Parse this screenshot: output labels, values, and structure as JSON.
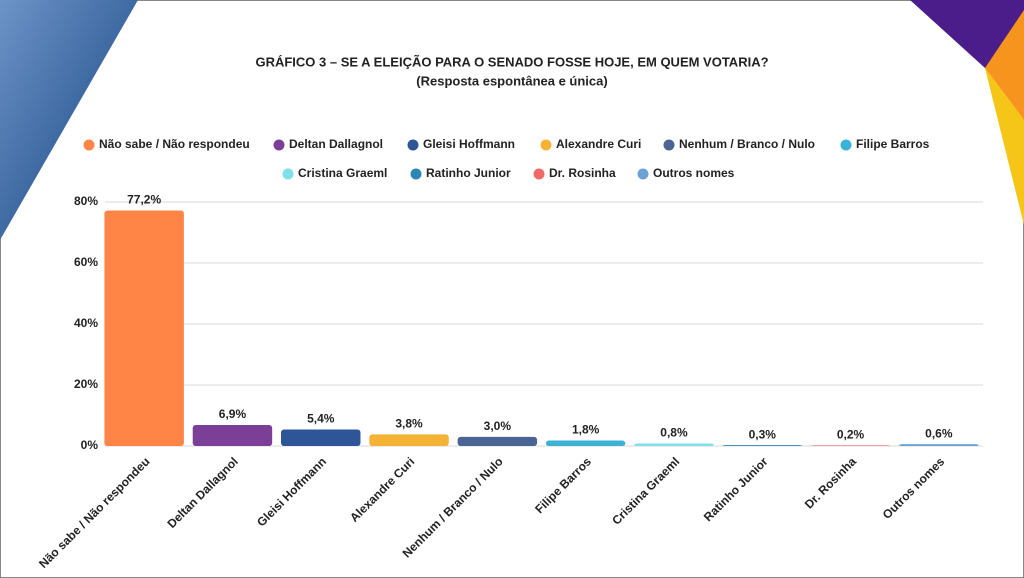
{
  "chart_data": {
    "type": "bar",
    "title": "GRÁFICO 3 – SE A ELEIÇÃO PARA O SENADO FOSSE HOJE, EM QUEM VOTARIA?",
    "subtitle": "(Resposta espontânea e única)",
    "categories": [
      "Não sabe / Não respondeu",
      "Deltan Dallagnol",
      "Gleisi Hoffmann",
      "Alexandre Curi",
      "Nenhum / Branco / Nulo",
      "Filipe Barros",
      "Cristina Graeml",
      "Ratinho Junior",
      "Dr. Rosinha",
      "Outros nomes"
    ],
    "values": [
      77.2,
      6.9,
      5.4,
      3.8,
      3.0,
      1.8,
      0.8,
      0.3,
      0.2,
      0.6
    ],
    "value_labels": [
      "77,2%",
      "6,9%",
      "5,4%",
      "3,8%",
      "3,0%",
      "1,8%",
      "0,8%",
      "0,3%",
      "0,2%",
      "0,6%"
    ],
    "colors": [
      "#ff8547",
      "#7b3f98",
      "#2e5597",
      "#f5b335",
      "#4a6593",
      "#3cb3d6",
      "#7fe0e8",
      "#2e86b4",
      "#f06a6a",
      "#6fa2d4"
    ],
    "ylim": [
      0,
      80
    ],
    "yticks": [
      {
        "value": 0,
        "label": "0%"
      },
      {
        "value": 20,
        "label": "20%"
      },
      {
        "value": 40,
        "label": "40%"
      },
      {
        "value": 60,
        "label": "60%"
      },
      {
        "value": 80,
        "label": "80%"
      }
    ],
    "grid": true,
    "legend": "top"
  }
}
